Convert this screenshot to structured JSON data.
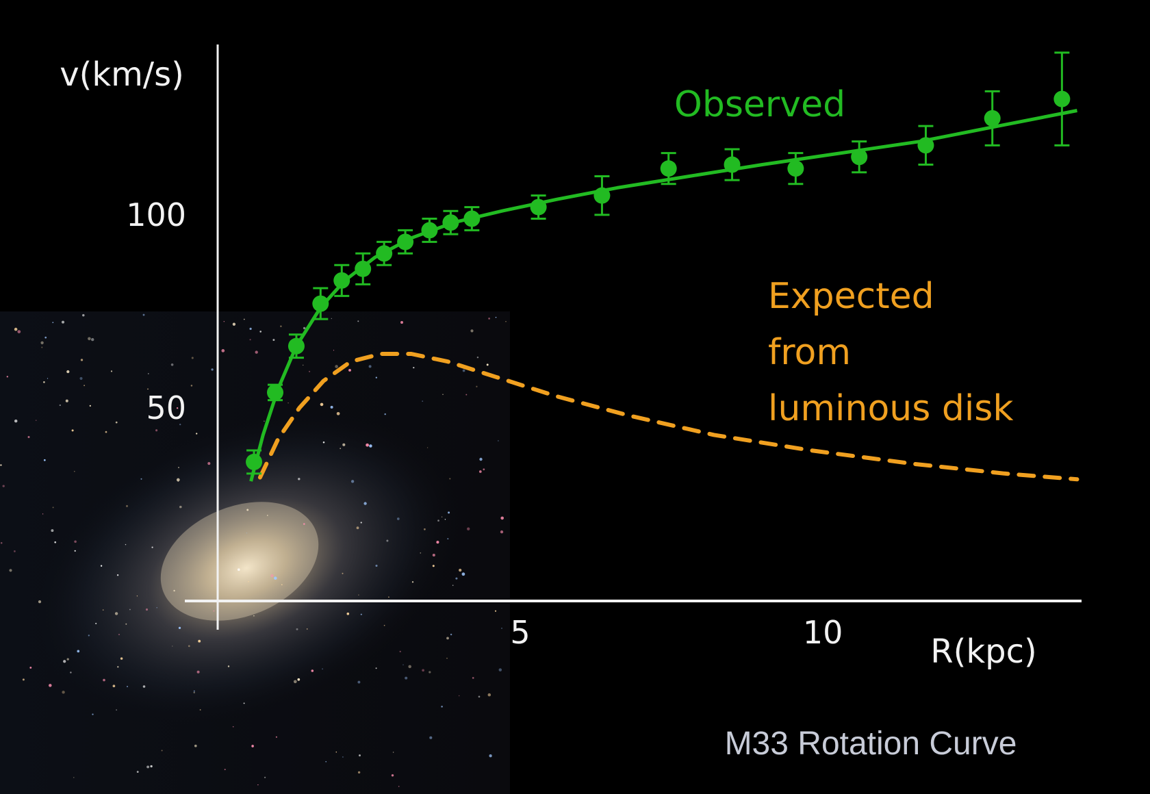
{
  "chart_data": {
    "type": "line",
    "title": "M33 Rotation Curve",
    "xlabel": "R(kpc)",
    "ylabel": "v(km/s)",
    "xlim": [
      0,
      14.5
    ],
    "ylim": [
      0,
      145
    ],
    "x_ticks": [
      5,
      10
    ],
    "y_ticks": [
      50,
      100
    ],
    "series": [
      {
        "name": "Observed",
        "kind": "points-with-fit",
        "color": "#22bb22",
        "points": [
          {
            "x": 0.6,
            "y": 36,
            "err": 3
          },
          {
            "x": 0.95,
            "y": 54,
            "err": 2
          },
          {
            "x": 1.3,
            "y": 66,
            "err": 3
          },
          {
            "x": 1.7,
            "y": 77,
            "err": 4
          },
          {
            "x": 2.05,
            "y": 83,
            "err": 4
          },
          {
            "x": 2.4,
            "y": 86,
            "err": 4
          },
          {
            "x": 2.75,
            "y": 90,
            "err": 3
          },
          {
            "x": 3.1,
            "y": 93,
            "err": 3
          },
          {
            "x": 3.5,
            "y": 96,
            "err": 3
          },
          {
            "x": 3.85,
            "y": 98,
            "err": 3
          },
          {
            "x": 4.2,
            "y": 99,
            "err": 3
          },
          {
            "x": 5.3,
            "y": 102,
            "err": 3
          },
          {
            "x": 6.35,
            "y": 105,
            "err": 5
          },
          {
            "x": 7.45,
            "y": 112,
            "err": 4
          },
          {
            "x": 8.5,
            "y": 113,
            "err": 4
          },
          {
            "x": 9.55,
            "y": 112,
            "err": 4
          },
          {
            "x": 10.6,
            "y": 115,
            "err": 4
          },
          {
            "x": 11.7,
            "y": 118,
            "err": 5
          },
          {
            "x": 12.8,
            "y": 125,
            "err": 7
          },
          {
            "x": 13.95,
            "y": 130,
            "err": 12
          }
        ],
        "fit": [
          {
            "x": 0.55,
            "y": 31
          },
          {
            "x": 0.75,
            "y": 43
          },
          {
            "x": 1.0,
            "y": 55
          },
          {
            "x": 1.3,
            "y": 66
          },
          {
            "x": 1.7,
            "y": 76
          },
          {
            "x": 2.1,
            "y": 83
          },
          {
            "x": 2.6,
            "y": 89
          },
          {
            "x": 3.2,
            "y": 94
          },
          {
            "x": 3.9,
            "y": 98
          },
          {
            "x": 4.7,
            "y": 101
          },
          {
            "x": 5.6,
            "y": 104
          },
          {
            "x": 6.6,
            "y": 107
          },
          {
            "x": 7.8,
            "y": 110
          },
          {
            "x": 9.0,
            "y": 113
          },
          {
            "x": 10.3,
            "y": 116
          },
          {
            "x": 11.6,
            "y": 119
          },
          {
            "x": 12.9,
            "y": 123
          },
          {
            "x": 14.2,
            "y": 127
          }
        ]
      },
      {
        "name": "Expected from luminous disk",
        "label_lines": [
          "Expected",
          "from",
          "luminous disk"
        ],
        "kind": "dashed-line",
        "color": "#f0a020",
        "points": [
          {
            "x": 0.7,
            "y": 32
          },
          {
            "x": 1.0,
            "y": 42
          },
          {
            "x": 1.35,
            "y": 50
          },
          {
            "x": 1.75,
            "y": 57
          },
          {
            "x": 2.2,
            "y": 62
          },
          {
            "x": 2.7,
            "y": 64
          },
          {
            "x": 3.2,
            "y": 64
          },
          {
            "x": 3.8,
            "y": 62
          },
          {
            "x": 4.6,
            "y": 58
          },
          {
            "x": 5.6,
            "y": 53
          },
          {
            "x": 6.8,
            "y": 48
          },
          {
            "x": 8.2,
            "y": 43
          },
          {
            "x": 9.8,
            "y": 39
          },
          {
            "x": 11.5,
            "y": 35.5
          },
          {
            "x": 13.0,
            "y": 33
          },
          {
            "x": 14.2,
            "y": 31.5
          }
        ]
      }
    ]
  }
}
